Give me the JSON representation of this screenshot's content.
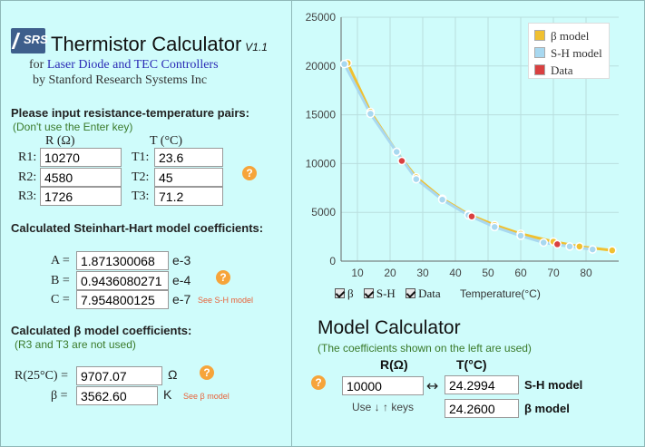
{
  "header": {
    "logo_text": "SRS",
    "title": "Thermistor Calculator",
    "version": "V1.1",
    "subtitle_prefix": "for ",
    "subtitle_link": "Laser Diode and TEC Controllers",
    "byline": "by Stanford Research Systems Inc"
  },
  "pairs": {
    "heading": "Please input resistance-temperature pairs:",
    "note": "(Don't use the Enter key)",
    "r_header": "R (Ω)",
    "t_header": "T (°C)",
    "rows": [
      {
        "r_label": "R1:",
        "r_value": "10270",
        "t_label": "T1:",
        "t_value": "23.6"
      },
      {
        "r_label": "R2:",
        "r_value": "4580",
        "t_label": "T2:",
        "t_value": "45"
      },
      {
        "r_label": "R3:",
        "r_value": "1726",
        "t_label": "T3:",
        "t_value": "71.2"
      }
    ],
    "help": "?"
  },
  "sh": {
    "heading": "Calculated Steinhart-Hart model coefficients:",
    "coeffs": [
      {
        "label": "A =",
        "value": "1.871300068",
        "exp": "e-3"
      },
      {
        "label": "B =",
        "value": "0.9436080271",
        "exp": "e-4"
      },
      {
        "label": "C =",
        "value": "7.954800125",
        "exp": "e-7"
      }
    ],
    "see": "See S-H model",
    "help": "?"
  },
  "beta": {
    "heading": "Calculated β model coefficients:",
    "note": "(R3 and T3 are not used)",
    "r25_label": "R(25°C) =",
    "r25_value": "9707.07",
    "r25_unit": "Ω",
    "beta_label": "β =",
    "beta_value": "3562.60",
    "beta_unit": "K",
    "see": "See β model",
    "help": "?"
  },
  "chart_data": {
    "type": "line",
    "xlabel": "Temperature(°C)",
    "ylabel": "",
    "xlim": [
      5,
      90
    ],
    "ylim": [
      0,
      25000
    ],
    "xticks": [
      10,
      20,
      30,
      40,
      50,
      60,
      70,
      80
    ],
    "yticks": [
      0,
      5000,
      10000,
      15000,
      20000,
      25000
    ],
    "grid": true,
    "legend_position": "top-right",
    "series": [
      {
        "name": "β model",
        "color": "#f0c030",
        "x": [
          7,
          14,
          22,
          28,
          36,
          44,
          52,
          60,
          70,
          78,
          88
        ],
        "y": [
          20300,
          15300,
          11200,
          8600,
          6400,
          4800,
          3700,
          2800,
          2000,
          1500,
          1100
        ]
      },
      {
        "name": "S-H model",
        "color": "#a8d8f0",
        "x": [
          6,
          14,
          22,
          28,
          36,
          44,
          52,
          60,
          67,
          75,
          82
        ],
        "y": [
          20200,
          15100,
          11200,
          8400,
          6300,
          4700,
          3500,
          2600,
          1900,
          1500,
          1200
        ]
      },
      {
        "name": "Data",
        "color": "#d94040",
        "x": [
          23.6,
          45,
          71.2
        ],
        "y": [
          10270,
          4580,
          1726
        ]
      }
    ],
    "checkboxes": [
      {
        "label": "β",
        "checked": true
      },
      {
        "label": "S-H",
        "checked": true
      },
      {
        "label": "Data",
        "checked": true
      }
    ]
  },
  "model_calc": {
    "title": "Model Calculator",
    "note": "(The coefficients shown on the left are used)",
    "r_header": "R(Ω)",
    "t_header": "T(°C)",
    "r_value": "10000",
    "arrow": "↔",
    "sh_value": "24.2994",
    "sh_label": "S-H model",
    "beta_value": "24.2600",
    "beta_label": "β model",
    "keys_hint": "Use ↓ ↑ keys",
    "help": "?"
  }
}
